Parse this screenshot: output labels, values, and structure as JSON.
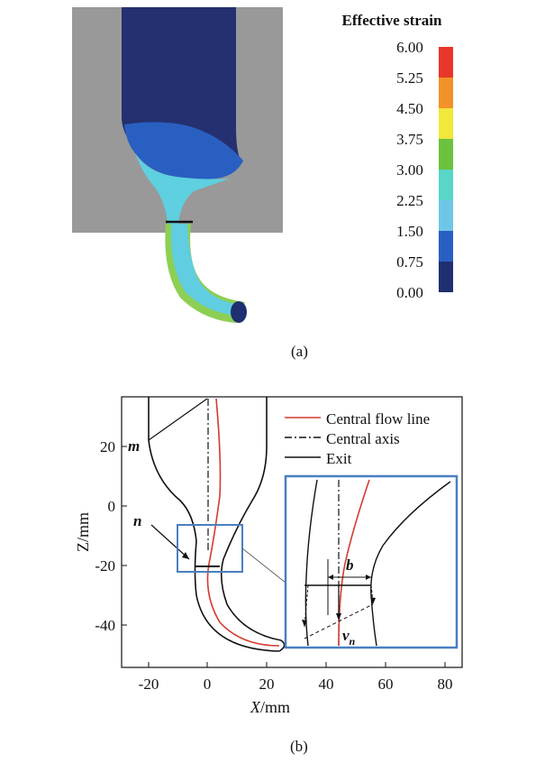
{
  "panel_a": {
    "legend_title": "Effective strain",
    "legend_ticks": [
      "6.00",
      "5.25",
      "4.50",
      "3.75",
      "3.00",
      "2.25",
      "1.50",
      "0.75",
      "0.00"
    ],
    "legend_colors": [
      "#e8372a",
      "#f4922a",
      "#f2e83a",
      "#6cc23f",
      "#58d6c8",
      "#6ec6e6",
      "#2a5fc2",
      "#1f2f6f"
    ],
    "die_color": "#999999",
    "billet_color": "#24306f",
    "caption": "(a)"
  },
  "panel_b": {
    "caption": "(b)",
    "x_axis_label_var": "X",
    "x_axis_label_unit": "/mm",
    "y_axis_label": "Z/mm",
    "x_ticks": [
      "-20",
      "0",
      "20",
      "40",
      "60",
      "80"
    ],
    "y_ticks": [
      "20",
      "0",
      "-20",
      "-40"
    ],
    "legend": [
      "Central flow line",
      "Central axis",
      "Exit"
    ],
    "label_m": "m",
    "label_n": "n",
    "label_b": "b",
    "label_v": "v",
    "label_v_sub": "n",
    "flow_line_color": "#d63a2e",
    "inset_color": "#4a7fc1"
  }
}
